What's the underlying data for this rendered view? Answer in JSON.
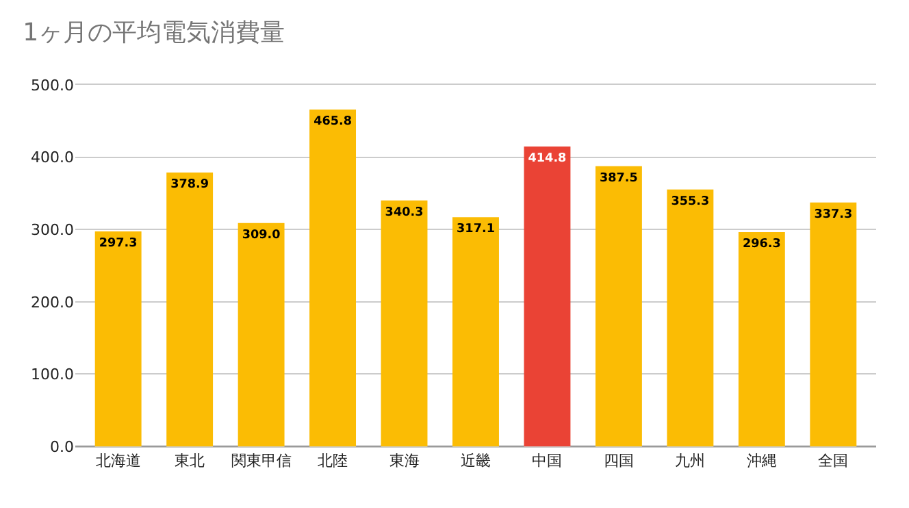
{
  "chart_data": {
    "type": "bar",
    "title": "1ヶ月の平均電気消費量",
    "categories": [
      "北海道",
      "東北",
      "関東甲信",
      "北陸",
      "東海",
      "近畿",
      "中国",
      "四国",
      "九州",
      "沖縄",
      "全国"
    ],
    "values": [
      297.3,
      378.9,
      309.0,
      465.8,
      340.3,
      317.1,
      414.8,
      387.5,
      355.3,
      296.3,
      337.3
    ],
    "colors": [
      "#fbbc04",
      "#fbbc04",
      "#fbbc04",
      "#fbbc04",
      "#fbbc04",
      "#fbbc04",
      "#ea4335",
      "#fbbc04",
      "#fbbc04",
      "#fbbc04",
      "#fbbc04"
    ],
    "ylim": [
      0,
      500
    ],
    "yticks": [
      {
        "value": 0,
        "label": "0.0"
      },
      {
        "value": 100,
        "label": "100.0"
      },
      {
        "value": 200,
        "label": "200.0"
      },
      {
        "value": 300,
        "label": "300.0"
      },
      {
        "value": 400,
        "label": "400.0"
      },
      {
        "value": 500,
        "label": "500.0"
      }
    ],
    "value_labels": [
      "297.3",
      "378.9",
      "309.0",
      "465.8",
      "340.3",
      "317.1",
      "414.8",
      "387.5",
      "355.3",
      "296.3",
      "337.3"
    ],
    "grid": "y",
    "legend": false
  }
}
